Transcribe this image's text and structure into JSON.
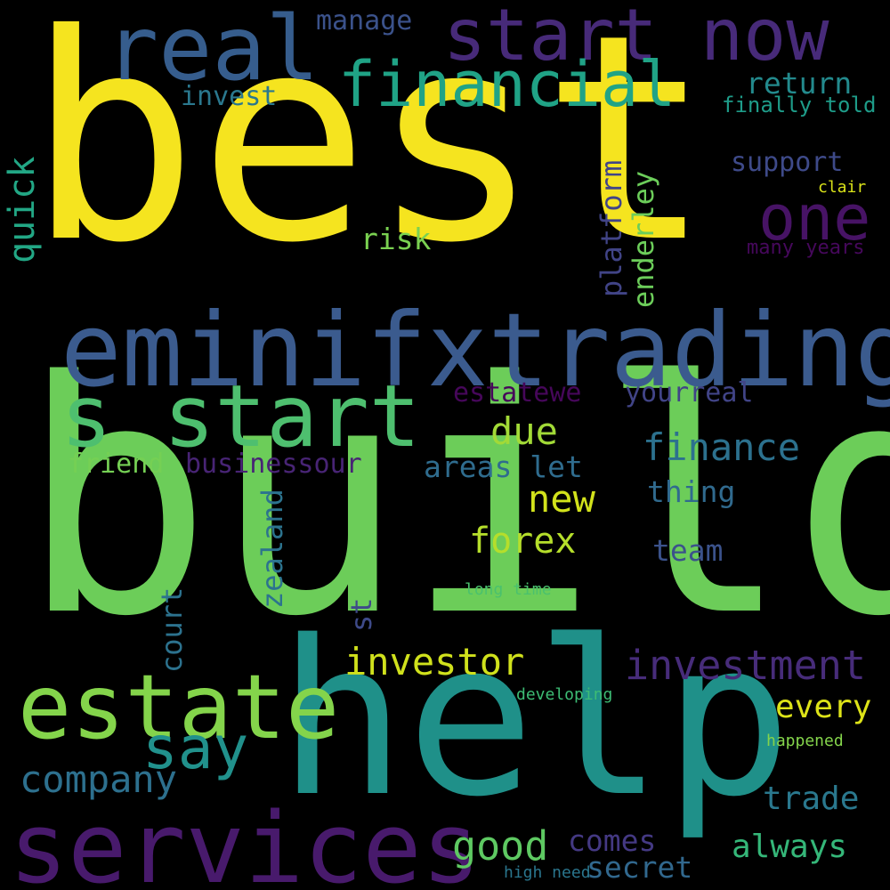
{
  "words": [
    {
      "text": "best",
      "color": "#f5e41f"
    },
    {
      "text": "build",
      "color": "#6ccd59"
    },
    {
      "text": "help",
      "color": "#1f9089"
    },
    {
      "text": "eminifxtrading",
      "color": "#3b5b8e"
    },
    {
      "text": "s start",
      "color": "#4ebf6f"
    },
    {
      "text": "services",
      "color": "#481a6c"
    },
    {
      "text": "estate",
      "color": "#84d44b"
    },
    {
      "text": "real",
      "color": "#365d8d"
    },
    {
      "text": "start now",
      "color": "#472a79"
    },
    {
      "text": "financial",
      "color": "#20a386"
    },
    {
      "text": "one",
      "color": "#471365"
    },
    {
      "text": "say",
      "color": "#21918c"
    },
    {
      "text": "investment",
      "color": "#472c7a"
    },
    {
      "text": "investor",
      "color": "#d0e11c"
    },
    {
      "text": "company",
      "color": "#2d708e"
    },
    {
      "text": "forex",
      "color": "#b5de2b"
    },
    {
      "text": "finance",
      "color": "#2c718e"
    },
    {
      "text": "new",
      "color": "#d2e21b"
    },
    {
      "text": "due",
      "color": "#a2da37"
    },
    {
      "text": "good",
      "color": "#5ec962"
    },
    {
      "text": "always",
      "color": "#35b779"
    },
    {
      "text": "trade",
      "color": "#2a788e"
    },
    {
      "text": "every",
      "color": "#dde318"
    },
    {
      "text": "secret",
      "color": "#31688e"
    },
    {
      "text": "comes",
      "color": "#443983"
    },
    {
      "text": "team",
      "color": "#3b528b"
    },
    {
      "text": "thing",
      "color": "#306a8e"
    },
    {
      "text": "areas let",
      "color": "#2f6c8e"
    },
    {
      "text": "businessour",
      "color": "#482475"
    },
    {
      "text": "friend",
      "color": "#75d054"
    },
    {
      "text": "yourreal",
      "color": "#414487"
    },
    {
      "text": "estatewe",
      "color": "#46075a"
    },
    {
      "text": "risk",
      "color": "#7ad151"
    },
    {
      "text": "support",
      "color": "#3e4a89"
    },
    {
      "text": "return",
      "color": "#238a8d"
    },
    {
      "text": "invest",
      "color": "#2a788e"
    },
    {
      "text": "manage",
      "color": "#3b528b"
    },
    {
      "text": "finally told",
      "color": "#1e9c89"
    },
    {
      "text": "clair",
      "color": "#dae319"
    },
    {
      "text": "many years",
      "color": "#46085c"
    },
    {
      "text": "long time",
      "color": "#4ac16d"
    },
    {
      "text": "developing",
      "color": "#3dbc74"
    },
    {
      "text": "happened",
      "color": "#84d44b"
    },
    {
      "text": "high need",
      "color": "#2a768e"
    },
    {
      "text": "quick",
      "color": "#22a785"
    },
    {
      "text": "platform",
      "color": "#414487"
    },
    {
      "text": "enderley",
      "color": "#6ccd5a"
    },
    {
      "text": "court",
      "color": "#2c728e"
    },
    {
      "text": "zealand",
      "color": "#2c738e"
    },
    {
      "text": "st",
      "color": "#3e4a89"
    }
  ]
}
